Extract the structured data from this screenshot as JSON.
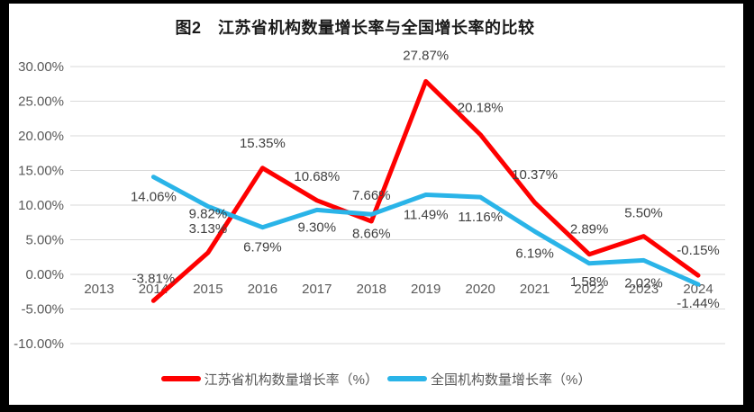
{
  "frame": {
    "border_color": "#000000",
    "background": "#ffffff"
  },
  "chart_data": {
    "type": "line",
    "title": "图2　江苏省机构数量增长率与全国增长率的比较",
    "categories": [
      "2013",
      "2014",
      "2015",
      "2016",
      "2017",
      "2018",
      "2019",
      "2020",
      "2021",
      "2022",
      "2023",
      "2024"
    ],
    "series": [
      {
        "name": "江苏省机构数量增长率（%）",
        "color": "#FE0000",
        "values": [
          null,
          -3.81,
          3.13,
          15.35,
          10.68,
          7.66,
          27.87,
          20.18,
          10.37,
          2.89,
          5.5,
          -0.15
        ],
        "labels": [
          "",
          "-3.81%",
          "3.13%",
          "15.35%",
          "10.68%",
          "7.66%",
          "27.87%",
          "20.18%",
          "10.37%",
          "2.89%",
          "5.50%",
          "-0.15%"
        ]
      },
      {
        "name": "全国机构数量增长率（%）",
        "color": "#2AB4E8",
        "values": [
          null,
          14.06,
          9.82,
          6.79,
          9.3,
          8.66,
          11.49,
          11.16,
          6.19,
          1.58,
          2.02,
          -1.44
        ],
        "labels": [
          "",
          "14.06%",
          "9.82%",
          "6.79%",
          "9.30%",
          "8.66%",
          "11.49%",
          "11.16%",
          "6.19%",
          "1.58%",
          "2.02%",
          "-1.44%"
        ]
      }
    ],
    "y_ticks": [
      {
        "value": 30,
        "label": "30.00%"
      },
      {
        "value": 25,
        "label": "25.00%"
      },
      {
        "value": 20,
        "label": "20.00%"
      },
      {
        "value": 15,
        "label": "15.00%"
      },
      {
        "value": 10,
        "label": "10.00%"
      },
      {
        "value": 5,
        "label": "5.00%"
      },
      {
        "value": 0,
        "label": "0.00%"
      },
      {
        "value": -5,
        "label": "-5.00%"
      },
      {
        "value": -10,
        "label": "-10.00%"
      }
    ],
    "ylim": [
      -10,
      30
    ],
    "grid": true,
    "gridline_color": "#D9D9D9",
    "axis_label_color": "#595959",
    "data_label_color": "#404040",
    "legend_position": "bottom"
  }
}
